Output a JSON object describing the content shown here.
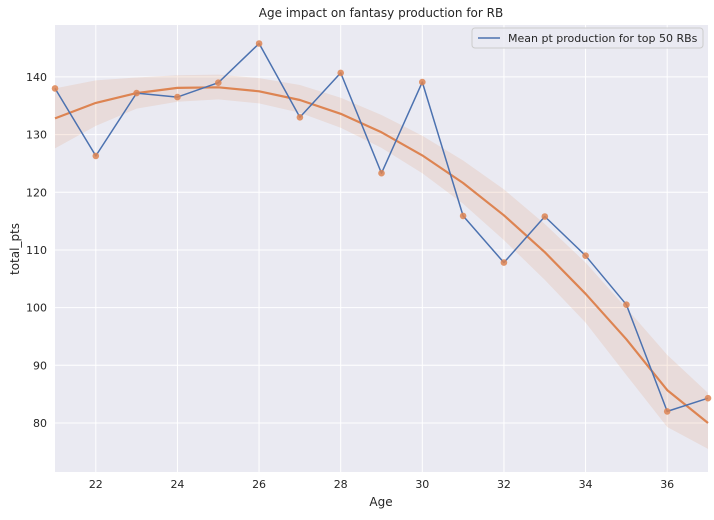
{
  "chart_data": {
    "type": "line",
    "title": "Age impact on fantasy production for RB",
    "xlabel": "Age",
    "ylabel": "total_pts",
    "xlim": [
      21,
      37
    ],
    "ylim": [
      71.5,
      149
    ],
    "xticks": [
      22,
      24,
      26,
      28,
      30,
      32,
      34,
      36
    ],
    "yticks": [
      80,
      90,
      100,
      110,
      120,
      130,
      140
    ],
    "grid": true,
    "legend": {
      "position": "top-right"
    },
    "series": [
      {
        "name": "Mean pt production for top 50 RBs",
        "kind": "line",
        "color": "#4c72b0",
        "x": [
          21,
          22,
          23,
          24,
          25,
          26,
          27,
          28,
          29,
          30,
          31,
          32,
          33,
          34,
          35,
          36,
          37
        ],
        "y": [
          138.0,
          126.3,
          137.2,
          136.5,
          139.0,
          145.8,
          133.0,
          140.7,
          123.3,
          139.1,
          115.9,
          107.8,
          115.8,
          109.0,
          100.5,
          82.0,
          84.3
        ]
      },
      {
        "kind": "scatter",
        "color": "#dd8452",
        "x": [
          21,
          22,
          23,
          24,
          25,
          26,
          27,
          28,
          29,
          30,
          31,
          32,
          33,
          34,
          35,
          36,
          37
        ],
        "y": [
          138.0,
          126.3,
          137.2,
          136.5,
          139.0,
          145.8,
          133.0,
          140.7,
          123.3,
          139.1,
          115.9,
          107.8,
          115.8,
          109.0,
          100.5,
          82.0,
          84.3
        ]
      },
      {
        "kind": "fit",
        "color": "#dd8452",
        "x": [
          21,
          22,
          23,
          24,
          25,
          26,
          27,
          28,
          29,
          30,
          31,
          32,
          33,
          34,
          35,
          36,
          37
        ],
        "y": [
          132.8,
          135.5,
          137.2,
          138.1,
          138.2,
          137.5,
          136.0,
          133.6,
          130.4,
          126.4,
          121.6,
          116.0,
          109.6,
          102.4,
          94.5,
          85.7,
          80.0
        ],
        "ci_lower": [
          127.6,
          131.5,
          134.5,
          135.7,
          136.1,
          135.4,
          133.8,
          131.2,
          127.7,
          123.3,
          118.0,
          111.7,
          104.8,
          97.4,
          88.3,
          79.3,
          75.5
        ],
        "ci_upper": [
          138.0,
          139.4,
          139.9,
          140.3,
          140.4,
          139.8,
          138.6,
          136.4,
          133.4,
          129.8,
          125.5,
          120.5,
          114.5,
          107.8,
          99.9,
          91.8,
          85.2
        ]
      }
    ]
  }
}
